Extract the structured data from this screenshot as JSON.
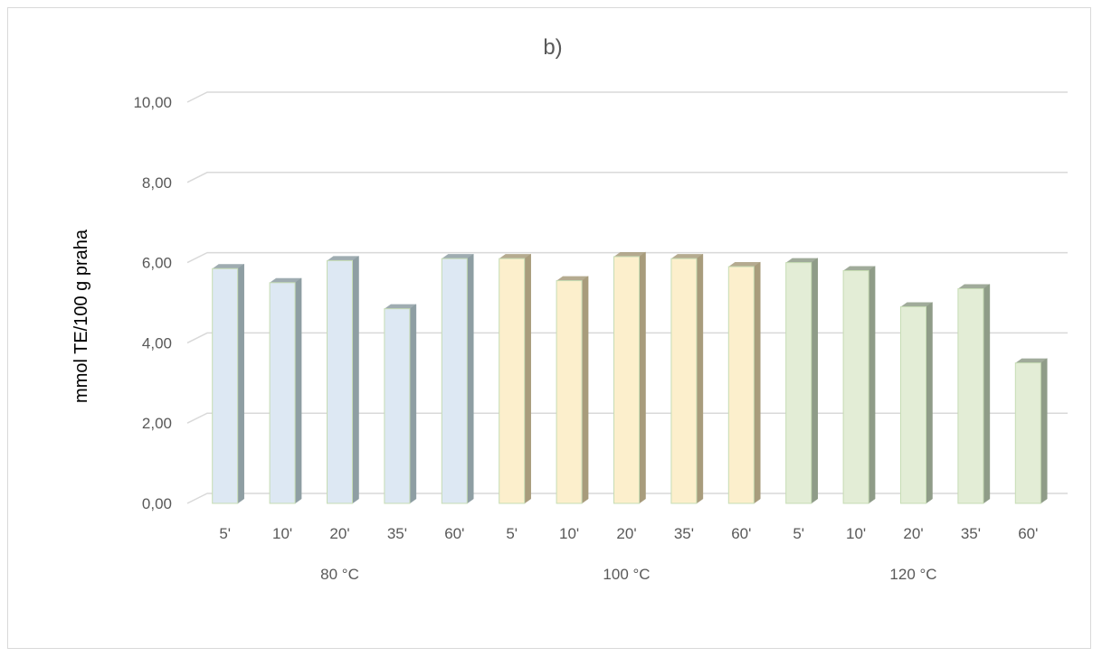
{
  "chart_data": {
    "type": "bar",
    "title": "b)",
    "xlabel": "",
    "ylabel": "mmol TE/100 g praha",
    "ylim": [
      0,
      10
    ],
    "ytick_labels": [
      "0,00",
      "2,00",
      "4,00",
      "6,00",
      "8,00",
      "10,00"
    ],
    "grid": true,
    "style_3d": true,
    "groups": [
      {
        "label": "80 °C",
        "color": "#dde8f3",
        "side_color": "#8e9ea3",
        "categories": [
          "5'",
          "10'",
          "20'",
          "35'",
          "60'"
        ],
        "values": [
          5.85,
          5.5,
          6.05,
          4.85,
          6.1
        ]
      },
      {
        "label": "100 °C",
        "color": "#fcefcc",
        "side_color": "#a89c7c",
        "categories": [
          "5'",
          "10'",
          "20'",
          "35'",
          "60'"
        ],
        "values": [
          6.1,
          5.55,
          6.15,
          6.1,
          5.9
        ]
      },
      {
        "label": "120 °C",
        "color": "#e3edd6",
        "side_color": "#8f9c88",
        "categories": [
          "5'",
          "10'",
          "20'",
          "35'",
          "60'"
        ],
        "values": [
          6.0,
          5.8,
          4.9,
          5.35,
          3.5
        ]
      }
    ]
  }
}
